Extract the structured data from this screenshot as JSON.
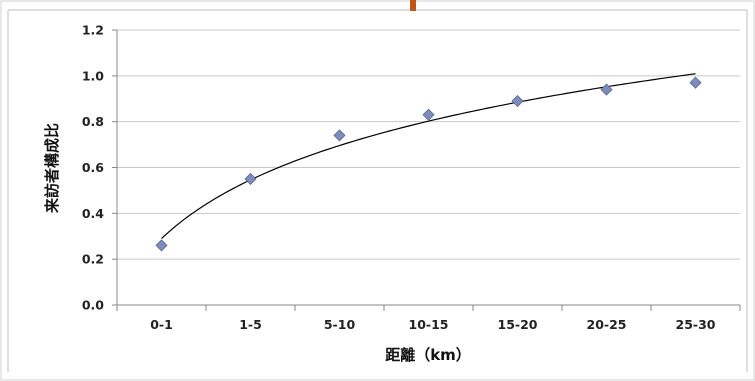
{
  "chart_data": {
    "type": "scatter",
    "title": "",
    "xlabel": "距離（km）",
    "ylabel": "来訪者構成比",
    "categories": [
      "0-1",
      "1-5",
      "5-10",
      "10-15",
      "15-20",
      "20-25",
      "25-30"
    ],
    "values": [
      0.26,
      0.55,
      0.74,
      0.83,
      0.89,
      0.94,
      0.97
    ],
    "y_ticks": [
      "0.0",
      "0.2",
      "0.4",
      "0.6",
      "0.8",
      "1.0",
      "1.2"
    ],
    "ylim": [
      0,
      1.2
    ],
    "grid": "horizontal",
    "legend": "none",
    "trendline": "logarithmic",
    "colors": {
      "marker": "#7f8cb8",
      "trendline": "#000000",
      "gridline": "#c8c8c8",
      "border": "#bfbfbf",
      "top_accent": "#c0571a"
    }
  }
}
